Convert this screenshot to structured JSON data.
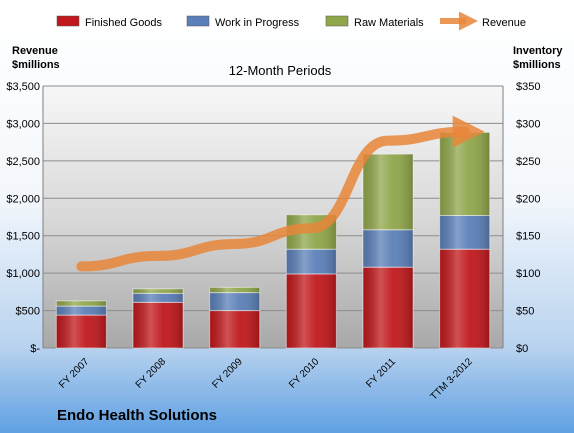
{
  "chart_data": {
    "type": "bar",
    "stacked": true,
    "title": "12-Month Periods",
    "company": "Endo Health Solutions",
    "categories": [
      "FY 2007",
      "FY 2008",
      "FY 2009",
      "FY 2010",
      "FY 2011",
      "TTM 3-2012"
    ],
    "series": [
      {
        "name": "Finished Goods",
        "axis": "right",
        "color": "#c0181c",
        "values": [
          44,
          61,
          50,
          99,
          108,
          132
        ]
      },
      {
        "name": "Work in Progress",
        "axis": "right",
        "color": "#5b7fb8",
        "values": [
          12,
          12,
          24,
          33,
          50,
          45
        ]
      },
      {
        "name": "Raw Materials",
        "axis": "right",
        "color": "#8fa64a",
        "values": [
          7,
          6,
          7,
          46,
          101,
          111
        ]
      }
    ],
    "line_series": {
      "name": "Revenue",
      "axis": "left",
      "color": "#e8863a",
      "values": [
        1090,
        1230,
        1390,
        1600,
        2770,
        2890
      ]
    },
    "left_axis": {
      "label_line1": "Revenue",
      "label_line2": "$millions",
      "ylim": [
        0,
        3500
      ],
      "ticks": [
        "$-",
        "$500",
        "$1,000",
        "$1,500",
        "$2,000",
        "$2,500",
        "$3,000",
        "$3,500"
      ]
    },
    "right_axis": {
      "label_line1": "Inventory",
      "label_line2": "$millions",
      "ylim": [
        0,
        350
      ],
      "ticks": [
        "$0",
        "$50",
        "$100",
        "$150",
        "$200",
        "$250",
        "$300",
        "$350"
      ]
    },
    "legend_position": "top",
    "grid": true
  }
}
